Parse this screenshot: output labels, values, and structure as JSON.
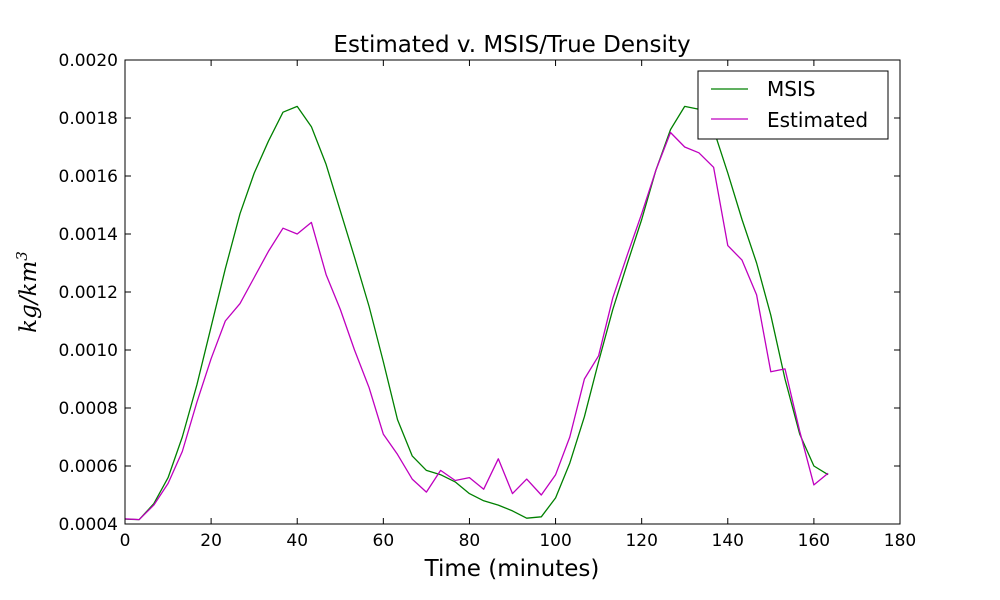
{
  "chart_data": {
    "type": "line",
    "title": "Estimated v. MSIS/True Density",
    "xlabel": "Time (minutes)",
    "ylabel": "kg/km",
    "ylabel_exponent": "3",
    "xlim": [
      0,
      180
    ],
    "ylim": [
      0.0004,
      0.002
    ],
    "xticks": [
      0,
      20,
      40,
      60,
      80,
      100,
      120,
      140,
      160,
      180
    ],
    "xtick_labels": [
      "0",
      "20",
      "40",
      "60",
      "80",
      "100",
      "120",
      "140",
      "160",
      "180"
    ],
    "yticks": [
      0.0004,
      0.0006,
      0.0008,
      0.001,
      0.0012,
      0.0014,
      0.0016,
      0.0018,
      0.002
    ],
    "ytick_labels": [
      "0.0004",
      "0.0006",
      "0.0008",
      "0.0010",
      "0.0012",
      "0.0014",
      "0.0016",
      "0.0018",
      "0.0020"
    ],
    "grid": false,
    "legend_position": "top-right",
    "series": [
      {
        "name": "MSIS",
        "color": "#008000",
        "x": [
          0,
          3.3,
          6.7,
          10,
          13.3,
          16.7,
          20,
          23.3,
          26.7,
          30,
          33.3,
          36.7,
          40,
          43.3,
          46.7,
          50,
          53.3,
          56.7,
          60,
          63.3,
          66.7,
          70,
          73.3,
          76.7,
          80,
          83.3,
          86.7,
          90,
          93.3,
          96.7,
          100,
          103.3,
          106.7,
          110,
          113.3,
          116.7,
          120,
          123.3,
          126.7,
          130,
          133.3,
          136.7,
          140,
          143.3,
          146.7,
          150,
          153.3,
          156.7,
          160,
          163.3
        ],
        "y": [
          0.000417,
          0.000415,
          0.00047,
          0.00056,
          0.0007,
          0.00088,
          0.00108,
          0.00128,
          0.00147,
          0.00161,
          0.00172,
          0.00182,
          0.00184,
          0.00177,
          0.00164,
          0.00148,
          0.00132,
          0.00115,
          0.00096,
          0.00076,
          0.000635,
          0.000585,
          0.00057,
          0.000545,
          0.000505,
          0.00048,
          0.000465,
          0.000445,
          0.00042,
          0.000425,
          0.00049,
          0.00061,
          0.00077,
          0.00096,
          0.00114,
          0.0013,
          0.00145,
          0.00162,
          0.00176,
          0.00184,
          0.00183,
          0.00176,
          0.00161,
          0.00145,
          0.0013,
          0.00112,
          0.0009,
          0.00071,
          0.0006,
          0.00057
        ]
      },
      {
        "name": "Estimated",
        "color": "#bf00bf",
        "x": [
          0,
          3.3,
          6.7,
          10,
          13.3,
          16.7,
          20,
          23.3,
          26.7,
          30,
          33.3,
          36.7,
          40,
          43.3,
          46.7,
          50,
          53.3,
          56.7,
          60,
          63.3,
          66.7,
          70,
          73.3,
          76.7,
          80,
          83.3,
          86.7,
          90,
          93.3,
          96.7,
          100,
          103.3,
          106.7,
          110,
          113.3,
          116.7,
          120,
          123.3,
          126.7,
          130,
          133.3,
          136.7,
          140,
          143.3,
          146.7,
          150,
          153.3,
          156.7,
          160,
          163.3
        ],
        "y": [
          0.000418,
          0.000415,
          0.000465,
          0.00054,
          0.00065,
          0.00082,
          0.00097,
          0.0011,
          0.00116,
          0.00125,
          0.00134,
          0.00142,
          0.0014,
          0.00144,
          0.00126,
          0.00114,
          0.001,
          0.00087,
          0.00071,
          0.00064,
          0.000555,
          0.00051,
          0.000585,
          0.00055,
          0.00056,
          0.00052,
          0.000625,
          0.000505,
          0.000555,
          0.0005,
          0.00057,
          0.0007,
          0.0009,
          0.00098,
          0.00118,
          0.00133,
          0.00147,
          0.00162,
          0.00175,
          0.0017,
          0.00168,
          0.00163,
          0.00136,
          0.00131,
          0.00119,
          0.000925,
          0.000935,
          0.00072,
          0.000535,
          0.000575
        ]
      }
    ]
  }
}
